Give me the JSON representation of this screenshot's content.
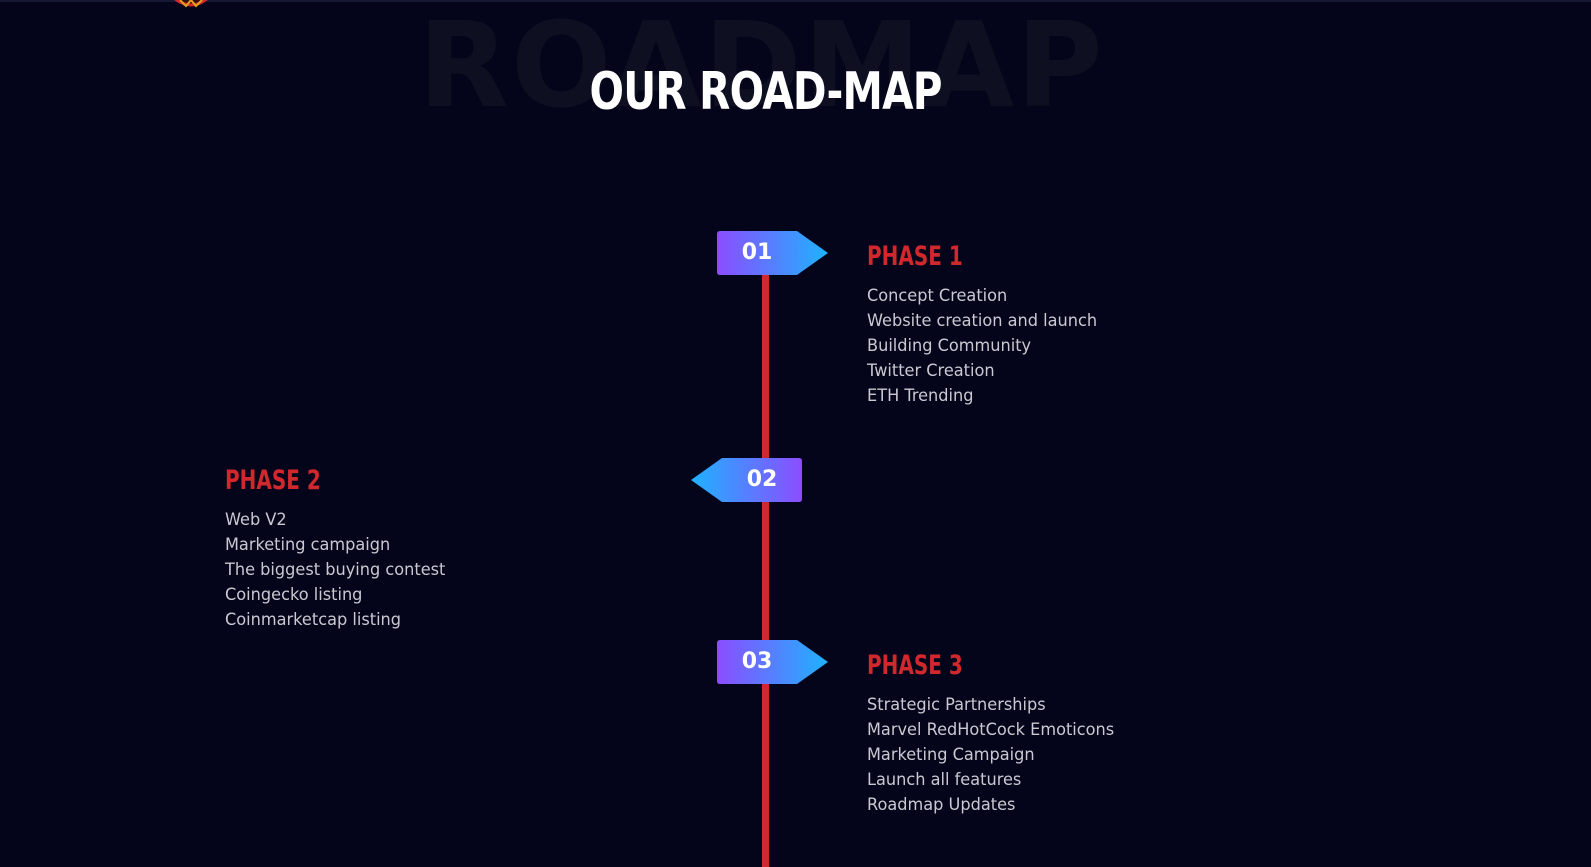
{
  "section": {
    "background_word": "ROADMAP",
    "title": "OUR ROAD-MAP"
  },
  "colors": {
    "background": "#04051a",
    "accent_red": "#d1282e",
    "marker_gradient_start": "#8b4dff",
    "marker_gradient_end": "#1fb2ff",
    "text": "#c9c9d2"
  },
  "phases": [
    {
      "number": "01",
      "title": "PHASE 1",
      "items": [
        "Concept Creation",
        "Website creation and launch",
        "Building Community",
        "Twitter Creation",
        "ETH Trending"
      ]
    },
    {
      "number": "02",
      "title": "PHASE 2",
      "items": [
        "Web V2",
        "Marketing campaign",
        "The biggest buying contest",
        "Coingecko listing",
        "Coinmarketcap listing"
      ]
    },
    {
      "number": "03",
      "title": "PHASE 3",
      "items": [
        "Strategic Partnerships",
        "Marvel RedHotCock Emoticons",
        "Marketing Campaign",
        "Launch all features",
        "Roadmap Updates"
      ]
    }
  ]
}
